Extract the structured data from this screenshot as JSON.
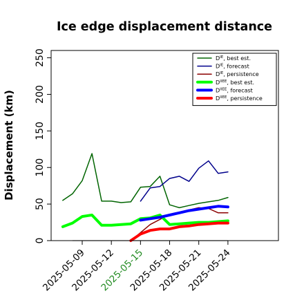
{
  "chart_data": {
    "type": "line",
    "title": "Ice edge displacement distance",
    "ylabel": "Displacement (km)",
    "xlabel": "",
    "ylim": [
      0,
      260
    ],
    "yticks": [
      0,
      50,
      100,
      150,
      200,
      250
    ],
    "x_start": "2025-05-05",
    "xlim_index": [
      0.8,
      24.2
    ],
    "xticks": [
      {
        "index": 4,
        "label": "2025-05-09",
        "color": "#000000"
      },
      {
        "index": 7,
        "label": "2025-05-12",
        "color": "#000000"
      },
      {
        "index": 10,
        "label": "2025-05-15",
        "color": "#228B22"
      },
      {
        "index": 13,
        "label": "2025-05-18",
        "color": "#000000"
      },
      {
        "index": 16,
        "label": "2025-05-21",
        "color": "#000000"
      },
      {
        "index": 19,
        "label": "2025-05-24",
        "color": "#000000"
      }
    ],
    "grid": false,
    "legend_position": "top-right",
    "reference_line": {
      "value": 0,
      "color": "#888888"
    },
    "series": [
      {
        "name": "D^IE, best est.",
        "base": "D",
        "sup": "IE",
        "rest": ", best est.",
        "color": "#006400",
        "width": 1.5,
        "x": [
          "2025-05-07",
          "2025-05-08",
          "2025-05-09",
          "2025-05-10",
          "2025-05-11",
          "2025-05-12",
          "2025-05-13",
          "2025-05-14",
          "2025-05-15",
          "2025-05-16",
          "2025-05-17",
          "2025-05-18",
          "2025-05-19",
          "2025-05-20",
          "2025-05-21",
          "2025-05-22",
          "2025-05-23",
          "2025-05-24"
        ],
        "y": [
          55,
          64,
          82,
          119,
          54,
          54,
          52,
          53,
          73,
          74,
          88,
          49,
          45,
          48,
          51,
          53,
          55,
          59
        ]
      },
      {
        "name": "D^IE, forecast",
        "base": "D",
        "sup": "IE",
        "rest": ", forecast",
        "color": "#00008B",
        "width": 1.5,
        "x": [
          "2025-05-15",
          "2025-05-16",
          "2025-05-17",
          "2025-05-18",
          "2025-05-19",
          "2025-05-20",
          "2025-05-21",
          "2025-05-22",
          "2025-05-23",
          "2025-05-24"
        ],
        "y": [
          54,
          72,
          74,
          85,
          88,
          81,
          99,
          109,
          92,
          94
        ]
      },
      {
        "name": "D^IE, persistence",
        "base": "D",
        "sup": "IE",
        "rest": ", persistence",
        "color": "#8B0000",
        "width": 1.5,
        "x": [
          "2025-05-14",
          "2025-05-15",
          "2025-05-16",
          "2025-05-17",
          "2025-05-18",
          "2025-05-19",
          "2025-05-20",
          "2025-05-21",
          "2025-05-22",
          "2025-05-23",
          "2025-05-24"
        ],
        "y": [
          0,
          11,
          22,
          29,
          36,
          39,
          42,
          45,
          44,
          38,
          38
        ]
      },
      {
        "name": "D^IIEE, best est.",
        "base": "D",
        "sup": "IIEE",
        "rest": ", best est.",
        "color": "#00FF00",
        "width": 4,
        "x": [
          "2025-05-07",
          "2025-05-08",
          "2025-05-09",
          "2025-05-10",
          "2025-05-11",
          "2025-05-12",
          "2025-05-13",
          "2025-05-14",
          "2025-05-15",
          "2025-05-16",
          "2025-05-17",
          "2025-05-18",
          "2025-05-19",
          "2025-05-20",
          "2025-05-21",
          "2025-05-22",
          "2025-05-23",
          "2025-05-24"
        ],
        "y": [
          19,
          24,
          33,
          35,
          21,
          21,
          22,
          23,
          30,
          31,
          35,
          22,
          23,
          24,
          25,
          25,
          26,
          27
        ]
      },
      {
        "name": "D^IIEE, forecast",
        "base": "D",
        "sup": "IIEE",
        "rest": ", forecast",
        "color": "#0000FF",
        "width": 4,
        "x": [
          "2025-05-15",
          "2025-05-16",
          "2025-05-17",
          "2025-05-18",
          "2025-05-19",
          "2025-05-20",
          "2025-05-21",
          "2025-05-22",
          "2025-05-23",
          "2025-05-24"
        ],
        "y": [
          28,
          30,
          32,
          35,
          38,
          41,
          43,
          45,
          47,
          46
        ]
      },
      {
        "name": "D^IIEE, persistence",
        "base": "D",
        "sup": "IIEE",
        "rest": ", persistence",
        "color": "#FF0000",
        "width": 4,
        "x": [
          "2025-05-14",
          "2025-05-15",
          "2025-05-16",
          "2025-05-17",
          "2025-05-18",
          "2025-05-19",
          "2025-05-20",
          "2025-05-21",
          "2025-05-22",
          "2025-05-23",
          "2025-05-24"
        ],
        "y": [
          0,
          9,
          14,
          16,
          16,
          19,
          20,
          22,
          23,
          24,
          24
        ]
      }
    ]
  }
}
